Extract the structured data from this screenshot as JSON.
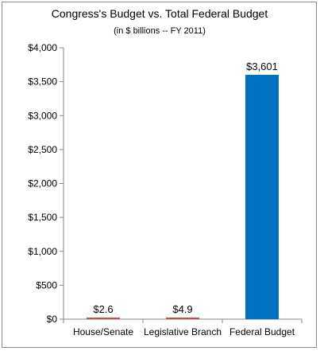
{
  "chart_data": {
    "type": "bar",
    "title": "Congress's Budget vs. Total Federal Budget",
    "subtitle": "(in $ billions -- FY 2011)",
    "categories": [
      "House/Senate",
      "Legislative Branch",
      "Federal Budget"
    ],
    "values": [
      2.6,
      4.9,
      3601
    ],
    "data_labels": [
      "$2.6",
      "$4.9",
      "$3,601"
    ],
    "bar_colors": [
      "#c0504d",
      "#c0504d",
      "#0070c0"
    ],
    "ylim": [
      0,
      4000
    ],
    "yticks": [
      0,
      500,
      1000,
      1500,
      2000,
      2500,
      3000,
      3500,
      4000
    ],
    "ytick_labels": [
      "$0",
      "$500",
      "$1,000",
      "$1,500",
      "$2,000",
      "$2,500",
      "$3,000",
      "$3,500",
      "$4,000"
    ],
    "xlabel": "",
    "ylabel": "",
    "grid": false,
    "legend": "none"
  }
}
